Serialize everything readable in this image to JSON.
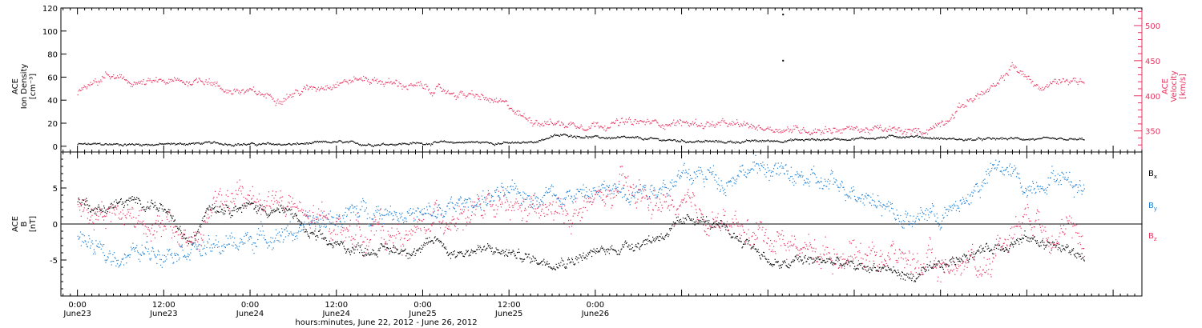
{
  "chart_data": [
    {
      "type": "scatter",
      "panel": "top",
      "ylabel": [
        "ACE",
        "Ion Density",
        "[cm⁻³]"
      ],
      "y2label": [
        "ACE",
        "Velocity",
        "[km/s]"
      ],
      "ylim": [
        -5,
        120
      ],
      "y2lim": [
        320,
        525
      ],
      "yticks": [
        0,
        20,
        40,
        60,
        80,
        100,
        120
      ],
      "y2ticks": [
        350,
        400,
        450,
        500
      ],
      "series": [
        {
          "color": "#000000",
          "axis": "left",
          "anchors": [
            [
              0,
              2
            ],
            [
              12,
              2
            ],
            [
              18,
              3
            ],
            [
              24,
              2
            ],
            [
              30,
              2
            ],
            [
              36,
              4
            ],
            [
              40,
              2
            ],
            [
              48,
              3
            ],
            [
              54,
              4
            ],
            [
              60,
              3
            ],
            [
              62,
              3
            ],
            [
              64,
              5
            ],
            [
              66,
              9
            ],
            [
              68,
              10
            ],
            [
              70,
              9
            ],
            [
              72,
              8
            ],
            [
              78,
              7
            ],
            [
              84,
              5
            ],
            [
              90,
              4
            ],
            [
              96,
              5
            ],
            [
              102,
              6
            ],
            [
              108,
              7
            ],
            [
              112,
              8
            ],
            [
              114,
              9
            ],
            [
              116,
              9
            ],
            [
              118,
              8
            ],
            [
              120,
              7
            ],
            [
              124,
              6
            ],
            [
              130,
              7
            ],
            [
              136,
              6
            ],
            [
              140,
              6
            ]
          ],
          "noise": 1.2,
          "outliers": [
            [
              98,
              115
            ],
            [
              98,
              75
            ]
          ]
        },
        {
          "color": "#e8325f",
          "axis": "right",
          "anchors": [
            [
              0,
              405
            ],
            [
              2,
              415
            ],
            [
              4,
              430
            ],
            [
              6,
              422
            ],
            [
              9,
              418
            ],
            [
              12,
              420
            ],
            [
              15,
              420
            ],
            [
              18,
              425
            ],
            [
              20,
              410
            ],
            [
              24,
              405
            ],
            [
              28,
              398
            ],
            [
              32,
              410
            ],
            [
              36,
              420
            ],
            [
              40,
              425
            ],
            [
              44,
              418
            ],
            [
              48,
              412
            ],
            [
              52,
              405
            ],
            [
              56,
              398
            ],
            [
              60,
              385
            ],
            [
              62,
              370
            ],
            [
              64,
              365
            ],
            [
              66,
              362
            ],
            [
              68,
              360
            ],
            [
              72,
              360
            ],
            [
              76,
              362
            ],
            [
              80,
              362
            ],
            [
              84,
              362
            ],
            [
              88,
              360
            ],
            [
              92,
              358
            ],
            [
              96,
              355
            ],
            [
              100,
              352
            ],
            [
              104,
              353
            ],
            [
              108,
              353
            ],
            [
              112,
              352
            ],
            [
              116,
              348
            ],
            [
              118,
              352
            ],
            [
              120,
              362
            ],
            [
              122,
              378
            ],
            [
              124,
              395
            ],
            [
              126,
              405
            ],
            [
              128,
              415
            ],
            [
              130,
              445
            ],
            [
              132,
              425
            ],
            [
              134,
              410
            ],
            [
              136,
              420
            ],
            [
              138,
              425
            ],
            [
              140,
              420
            ]
          ],
          "noise": 6
        }
      ]
    },
    {
      "type": "scatter",
      "panel": "bottom",
      "ylabel": [
        "ACE",
        "B",
        "[nT]"
      ],
      "ylim": [
        -10,
        10
      ],
      "yticks": [
        -5,
        0,
        5
      ],
      "reference_line": 0,
      "legend": [
        "Bx",
        "By",
        "Bz"
      ],
      "series": [
        {
          "name": "Bx",
          "color": "#000000",
          "anchors": [
            [
              0,
              3.5
            ],
            [
              3,
              2
            ],
            [
              6,
              3
            ],
            [
              10,
              3
            ],
            [
              12,
              2
            ],
            [
              14,
              -1
            ],
            [
              16,
              -3
            ],
            [
              18,
              3
            ],
            [
              20,
              2.5
            ],
            [
              24,
              2.5
            ],
            [
              30,
              1.5
            ],
            [
              32,
              -1.5
            ],
            [
              36,
              -3
            ],
            [
              40,
              -3.5
            ],
            [
              44,
              -3.5
            ],
            [
              48,
              -3.5
            ],
            [
              50,
              -2
            ],
            [
              52,
              -4
            ],
            [
              56,
              -3.5
            ],
            [
              60,
              -4
            ],
            [
              64,
              -5
            ],
            [
              68,
              -5
            ],
            [
              72,
              -4
            ],
            [
              76,
              -3
            ],
            [
              80,
              -2
            ],
            [
              84,
              0
            ],
            [
              86,
              1
            ],
            [
              88,
              0
            ],
            [
              90,
              -1
            ],
            [
              94,
              -3
            ],
            [
              96,
              -5
            ],
            [
              98,
              -6
            ],
            [
              100,
              -5
            ],
            [
              104,
              -5
            ],
            [
              108,
              -6
            ],
            [
              112,
              -6
            ],
            [
              116,
              -7.5
            ],
            [
              120,
              -6
            ],
            [
              124,
              -4
            ],
            [
              128,
              -3
            ],
            [
              132,
              -2
            ],
            [
              136,
              -3
            ],
            [
              140,
              -4.5
            ]
          ],
          "noise": 0.8
        },
        {
          "name": "By",
          "color": "#1a7fd4",
          "anchors": [
            [
              0,
              -2
            ],
            [
              4,
              -4.5
            ],
            [
              8,
              -4
            ],
            [
              12,
              -3.5
            ],
            [
              16,
              -3
            ],
            [
              18,
              -3.5
            ],
            [
              20,
              -3
            ],
            [
              24,
              -2
            ],
            [
              30,
              -1
            ],
            [
              33,
              0
            ],
            [
              36,
              1
            ],
            [
              40,
              2
            ],
            [
              44,
              2
            ],
            [
              48,
              1
            ],
            [
              50,
              1.5
            ],
            [
              54,
              3
            ],
            [
              58,
              4
            ],
            [
              62,
              4
            ],
            [
              66,
              4.5
            ],
            [
              70,
              4
            ],
            [
              72,
              4.5
            ],
            [
              76,
              5
            ],
            [
              80,
              5
            ],
            [
              84,
              6.5
            ],
            [
              88,
              7
            ],
            [
              90,
              6
            ],
            [
              92,
              7.5
            ],
            [
              94,
              7.5
            ],
            [
              96,
              8
            ],
            [
              98,
              7
            ],
            [
              100,
              6.5
            ],
            [
              104,
              5.5
            ],
            [
              108,
              5
            ],
            [
              112,
              3
            ],
            [
              116,
              0
            ],
            [
              118,
              2
            ],
            [
              120,
              1
            ],
            [
              122,
              2
            ],
            [
              124,
              4
            ],
            [
              126,
              6
            ],
            [
              128,
              8
            ],
            [
              130,
              7
            ],
            [
              132,
              5
            ],
            [
              136,
              7
            ],
            [
              140,
              5
            ]
          ],
          "noise": 1.4
        },
        {
          "name": "Bz",
          "color": "#e8325f",
          "anchors": [
            [
              0,
              3
            ],
            [
              3,
              2
            ],
            [
              6,
              1.5
            ],
            [
              9,
              1
            ],
            [
              11,
              -0.5
            ],
            [
              13,
              -1
            ],
            [
              15,
              -2
            ],
            [
              17,
              -2
            ],
            [
              19,
              3
            ],
            [
              21,
              3.5
            ],
            [
              24,
              3.5
            ],
            [
              28,
              3.5
            ],
            [
              30,
              2
            ],
            [
              32,
              0.5
            ],
            [
              35,
              0.5
            ],
            [
              38,
              -1
            ],
            [
              42,
              -1
            ],
            [
              46,
              -2
            ],
            [
              50,
              1
            ],
            [
              54,
              1.5
            ],
            [
              58,
              2
            ],
            [
              62,
              2
            ],
            [
              66,
              1.5
            ],
            [
              70,
              2
            ],
            [
              74,
              4
            ],
            [
              76,
              5
            ],
            [
              80,
              3
            ],
            [
              84,
              2
            ],
            [
              88,
              1
            ],
            [
              92,
              -1
            ],
            [
              96,
              -1.5
            ],
            [
              100,
              -3
            ],
            [
              104,
              -4
            ],
            [
              108,
              -4
            ],
            [
              112,
              -4
            ],
            [
              116,
              -5
            ],
            [
              120,
              -6
            ],
            [
              124,
              -5
            ],
            [
              126,
              -6
            ],
            [
              128,
              -3
            ],
            [
              132,
              2
            ],
            [
              136,
              -1
            ],
            [
              140,
              -2
            ]
          ],
          "noise": 2
        }
      ]
    }
  ],
  "xaxis": {
    "range_hours": [
      -2.3,
      148
    ],
    "ticks": [
      {
        "h": 0,
        "time": "0:00",
        "date": "June23"
      },
      {
        "h": 12,
        "time": "12:00",
        "date": "June23"
      },
      {
        "h": 24,
        "time": "0:00",
        "date": "June24"
      },
      {
        "h": 36,
        "time": "12:00",
        "date": "June24"
      },
      {
        "h": 48,
        "time": "0:00",
        "date": "June25"
      },
      {
        "h": 60,
        "time": "12:00",
        "date": "June25"
      },
      {
        "h": 72,
        "time": "0:00",
        "date": "June26"
      }
    ],
    "minor_per_hour": 1,
    "xlabel": "hours:minutes, June 22, 2012 - June 26, 2012"
  },
  "legend_labels": [
    {
      "base": "B",
      "sub": "x",
      "color": "#000000"
    },
    {
      "base": "B",
      "sub": "y",
      "color": "#1a7fd4"
    },
    {
      "base": "B",
      "sub": "z",
      "color": "#e8325f"
    }
  ]
}
